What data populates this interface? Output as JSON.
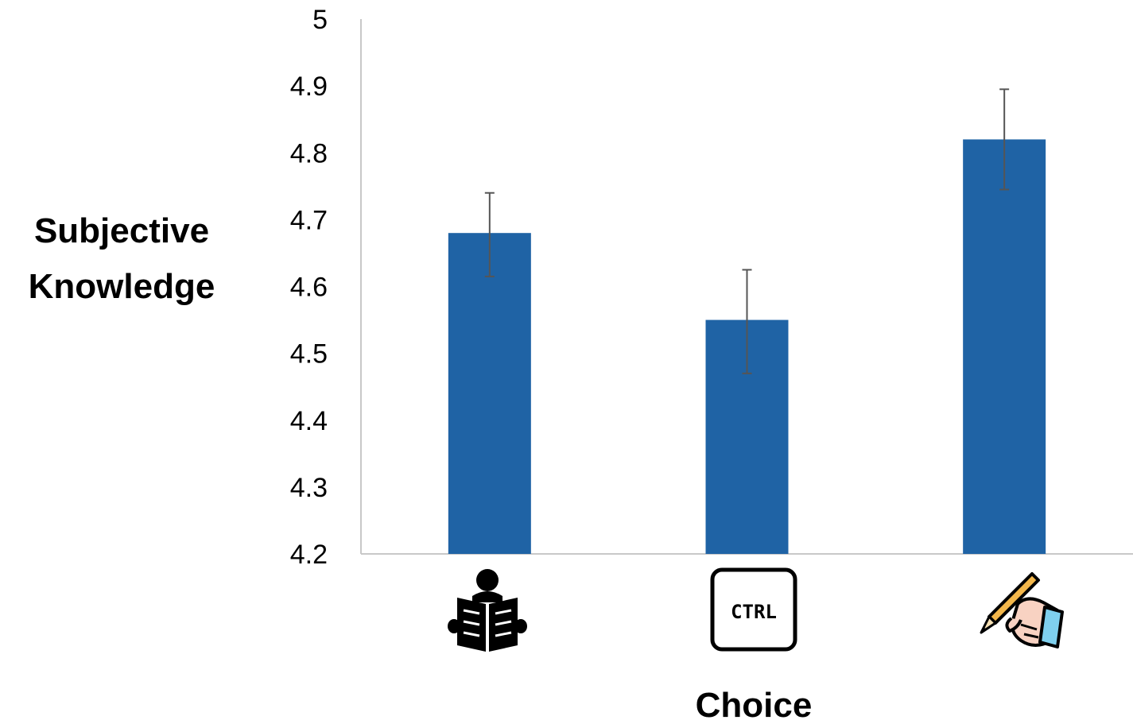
{
  "chart_data": {
    "type": "bar",
    "categories": [
      "reader",
      "ctrl",
      "writer"
    ],
    "category_icons": [
      "reading-person-icon",
      "ctrl-key-icon",
      "hand-writing-pencil-icon"
    ],
    "ctrl_key_text": "CTRL",
    "values": [
      4.68,
      4.55,
      4.82
    ],
    "error_upper": [
      4.74,
      4.625,
      4.895
    ],
    "error_lower": [
      4.615,
      4.47,
      4.745
    ],
    "ylim": [
      4.2,
      5.0
    ],
    "yticks": [
      "4.2",
      "4.3",
      "4.4",
      "4.5",
      "4.6",
      "4.7",
      "4.8",
      "4.9",
      "5"
    ],
    "ylabel_lines": [
      "Subjective",
      "Knowledge"
    ],
    "xlabel": "Choice",
    "title": "",
    "grid": false,
    "colors": {
      "bar": "#1f63a5",
      "error": "#555555",
      "axis": "#c8c8c8"
    }
  }
}
